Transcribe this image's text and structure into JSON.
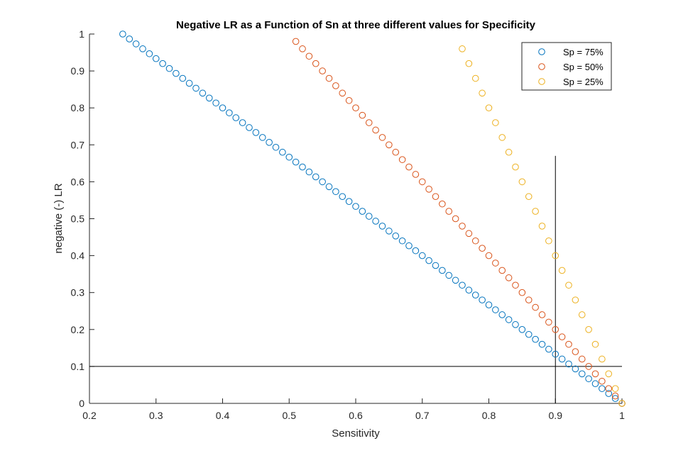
{
  "chart_data": {
    "type": "scatter",
    "title": "Negative LR as a Function of Sn at three different values for Specificity",
    "xlabel": "Sensitivity",
    "ylabel": "negative (-) LR",
    "xlim": [
      0.2,
      1.0
    ],
    "ylim": [
      0,
      1
    ],
    "xticks": [
      "0.2",
      "0.3",
      "0.4",
      "0.5",
      "0.6",
      "0.7",
      "0.8",
      "0.9",
      "1"
    ],
    "yticks": [
      "0",
      "0.1",
      "0.2",
      "0.3",
      "0.4",
      "0.5",
      "0.6",
      "0.7",
      "0.8",
      "0.9",
      "1"
    ],
    "grid": false,
    "legend_position": "top-right",
    "series": [
      {
        "name": "Sp = 75%",
        "color": "#0072BD",
        "formula": "(1 - x) / 0.75",
        "x_start": 0.25,
        "x_end": 1.0,
        "x_step": 0.01,
        "marker": "circle"
      },
      {
        "name": "Sp = 50%",
        "color": "#D95319",
        "formula": "(1 - x) / 0.50",
        "x_start": 0.51,
        "x_end": 1.0,
        "x_step": 0.01,
        "marker": "circle"
      },
      {
        "name": "Sp = 25%",
        "color": "#EDB120",
        "formula": "(1 - x) / 0.25",
        "x_start": 0.76,
        "x_end": 1.0,
        "x_step": 0.01,
        "marker": "circle"
      }
    ],
    "reference_lines": [
      {
        "orientation": "horizontal",
        "y": 0.1,
        "x_from": 0.2,
        "x_to": 1.0,
        "color": "#000000"
      },
      {
        "orientation": "vertical",
        "x": 0.9,
        "y_from": 0,
        "y_to": 0.67,
        "color": "#000000"
      }
    ]
  }
}
